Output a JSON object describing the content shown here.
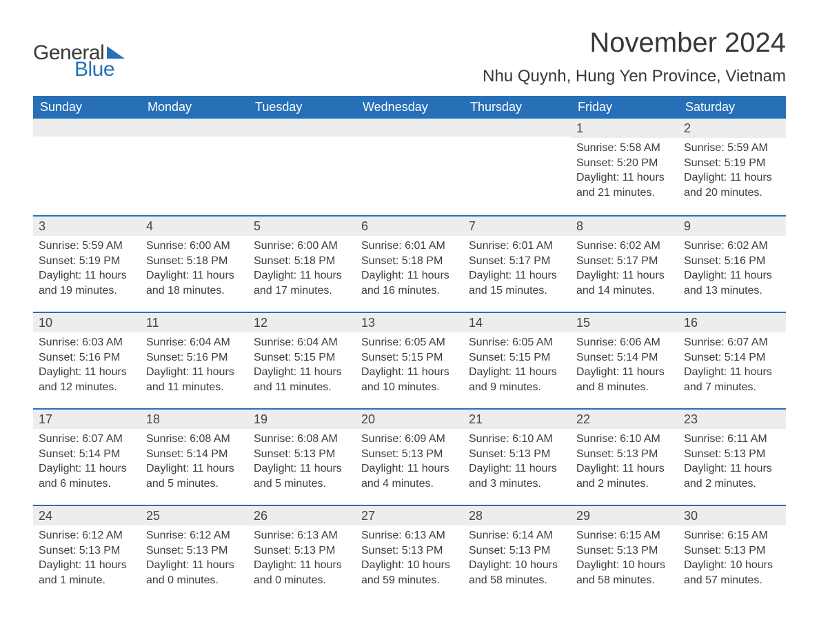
{
  "logo": {
    "word1": "General",
    "word2": "Blue"
  },
  "title": "November 2024",
  "location": "Nhu Quynh, Hung Yen Province, Vietnam",
  "colors": {
    "header_bg": "#2770b8",
    "header_text": "#ffffff",
    "row_divider": "#2770b8",
    "daynum_bg": "#ededed",
    "text": "#3d3d3d",
    "background": "#ffffff"
  },
  "day_names": [
    "Sunday",
    "Monday",
    "Tuesday",
    "Wednesday",
    "Thursday",
    "Friday",
    "Saturday"
  ],
  "weeks": [
    [
      {
        "blank": true
      },
      {
        "blank": true
      },
      {
        "blank": true
      },
      {
        "blank": true
      },
      {
        "blank": true
      },
      {
        "day": "1",
        "sunrise": "Sunrise: 5:58 AM",
        "sunset": "Sunset: 5:20 PM",
        "daylight": "Daylight: 11 hours and 21 minutes."
      },
      {
        "day": "2",
        "sunrise": "Sunrise: 5:59 AM",
        "sunset": "Sunset: 5:19 PM",
        "daylight": "Daylight: 11 hours and 20 minutes."
      }
    ],
    [
      {
        "day": "3",
        "sunrise": "Sunrise: 5:59 AM",
        "sunset": "Sunset: 5:19 PM",
        "daylight": "Daylight: 11 hours and 19 minutes."
      },
      {
        "day": "4",
        "sunrise": "Sunrise: 6:00 AM",
        "sunset": "Sunset: 5:18 PM",
        "daylight": "Daylight: 11 hours and 18 minutes."
      },
      {
        "day": "5",
        "sunrise": "Sunrise: 6:00 AM",
        "sunset": "Sunset: 5:18 PM",
        "daylight": "Daylight: 11 hours and 17 minutes."
      },
      {
        "day": "6",
        "sunrise": "Sunrise: 6:01 AM",
        "sunset": "Sunset: 5:18 PM",
        "daylight": "Daylight: 11 hours and 16 minutes."
      },
      {
        "day": "7",
        "sunrise": "Sunrise: 6:01 AM",
        "sunset": "Sunset: 5:17 PM",
        "daylight": "Daylight: 11 hours and 15 minutes."
      },
      {
        "day": "8",
        "sunrise": "Sunrise: 6:02 AM",
        "sunset": "Sunset: 5:17 PM",
        "daylight": "Daylight: 11 hours and 14 minutes."
      },
      {
        "day": "9",
        "sunrise": "Sunrise: 6:02 AM",
        "sunset": "Sunset: 5:16 PM",
        "daylight": "Daylight: 11 hours and 13 minutes."
      }
    ],
    [
      {
        "day": "10",
        "sunrise": "Sunrise: 6:03 AM",
        "sunset": "Sunset: 5:16 PM",
        "daylight": "Daylight: 11 hours and 12 minutes."
      },
      {
        "day": "11",
        "sunrise": "Sunrise: 6:04 AM",
        "sunset": "Sunset: 5:16 PM",
        "daylight": "Daylight: 11 hours and 11 minutes."
      },
      {
        "day": "12",
        "sunrise": "Sunrise: 6:04 AM",
        "sunset": "Sunset: 5:15 PM",
        "daylight": "Daylight: 11 hours and 11 minutes."
      },
      {
        "day": "13",
        "sunrise": "Sunrise: 6:05 AM",
        "sunset": "Sunset: 5:15 PM",
        "daylight": "Daylight: 11 hours and 10 minutes."
      },
      {
        "day": "14",
        "sunrise": "Sunrise: 6:05 AM",
        "sunset": "Sunset: 5:15 PM",
        "daylight": "Daylight: 11 hours and 9 minutes."
      },
      {
        "day": "15",
        "sunrise": "Sunrise: 6:06 AM",
        "sunset": "Sunset: 5:14 PM",
        "daylight": "Daylight: 11 hours and 8 minutes."
      },
      {
        "day": "16",
        "sunrise": "Sunrise: 6:07 AM",
        "sunset": "Sunset: 5:14 PM",
        "daylight": "Daylight: 11 hours and 7 minutes."
      }
    ],
    [
      {
        "day": "17",
        "sunrise": "Sunrise: 6:07 AM",
        "sunset": "Sunset: 5:14 PM",
        "daylight": "Daylight: 11 hours and 6 minutes."
      },
      {
        "day": "18",
        "sunrise": "Sunrise: 6:08 AM",
        "sunset": "Sunset: 5:14 PM",
        "daylight": "Daylight: 11 hours and 5 minutes."
      },
      {
        "day": "19",
        "sunrise": "Sunrise: 6:08 AM",
        "sunset": "Sunset: 5:13 PM",
        "daylight": "Daylight: 11 hours and 5 minutes."
      },
      {
        "day": "20",
        "sunrise": "Sunrise: 6:09 AM",
        "sunset": "Sunset: 5:13 PM",
        "daylight": "Daylight: 11 hours and 4 minutes."
      },
      {
        "day": "21",
        "sunrise": "Sunrise: 6:10 AM",
        "sunset": "Sunset: 5:13 PM",
        "daylight": "Daylight: 11 hours and 3 minutes."
      },
      {
        "day": "22",
        "sunrise": "Sunrise: 6:10 AM",
        "sunset": "Sunset: 5:13 PM",
        "daylight": "Daylight: 11 hours and 2 minutes."
      },
      {
        "day": "23",
        "sunrise": "Sunrise: 6:11 AM",
        "sunset": "Sunset: 5:13 PM",
        "daylight": "Daylight: 11 hours and 2 minutes."
      }
    ],
    [
      {
        "day": "24",
        "sunrise": "Sunrise: 6:12 AM",
        "sunset": "Sunset: 5:13 PM",
        "daylight": "Daylight: 11 hours and 1 minute."
      },
      {
        "day": "25",
        "sunrise": "Sunrise: 6:12 AM",
        "sunset": "Sunset: 5:13 PM",
        "daylight": "Daylight: 11 hours and 0 minutes."
      },
      {
        "day": "26",
        "sunrise": "Sunrise: 6:13 AM",
        "sunset": "Sunset: 5:13 PM",
        "daylight": "Daylight: 11 hours and 0 minutes."
      },
      {
        "day": "27",
        "sunrise": "Sunrise: 6:13 AM",
        "sunset": "Sunset: 5:13 PM",
        "daylight": "Daylight: 10 hours and 59 minutes."
      },
      {
        "day": "28",
        "sunrise": "Sunrise: 6:14 AM",
        "sunset": "Sunset: 5:13 PM",
        "daylight": "Daylight: 10 hours and 58 minutes."
      },
      {
        "day": "29",
        "sunrise": "Sunrise: 6:15 AM",
        "sunset": "Sunset: 5:13 PM",
        "daylight": "Daylight: 10 hours and 58 minutes."
      },
      {
        "day": "30",
        "sunrise": "Sunrise: 6:15 AM",
        "sunset": "Sunset: 5:13 PM",
        "daylight": "Daylight: 10 hours and 57 minutes."
      }
    ]
  ]
}
